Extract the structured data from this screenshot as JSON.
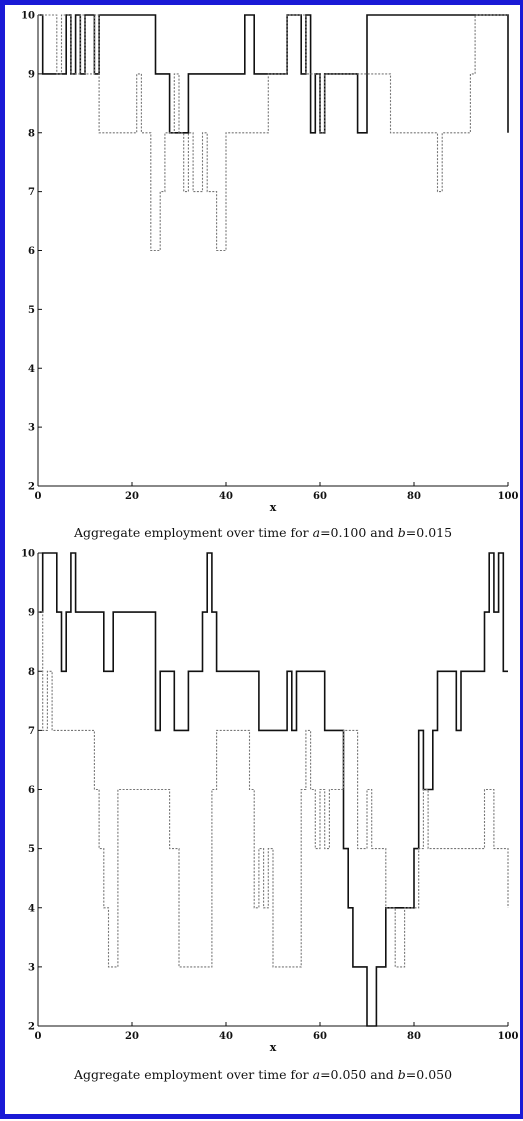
{
  "chart_data": [
    {
      "type": "line",
      "caption": "Aggregate employment over time for a=0.100 and b=0.015",
      "caption_parts": {
        "prefix": "Aggregate employment over time for ",
        "var1": "a",
        "eq1": "=0.100 and ",
        "var2": "b",
        "eq2": "=0.015"
      },
      "xlabel": "x",
      "ylabel": "",
      "xlim": [
        0,
        100
      ],
      "ylim": [
        2,
        10
      ],
      "xticks": [
        0,
        20,
        40,
        60,
        80,
        100
      ],
      "yticks": [
        2,
        3,
        4,
        5,
        6,
        7,
        8,
        9,
        10
      ],
      "grid": false,
      "series": [
        {
          "style": "solid",
          "color": "#111111",
          "x": [
            0,
            1,
            2,
            4,
            5,
            6,
            7,
            8,
            9,
            10,
            11,
            12,
            13,
            25,
            26,
            28,
            29,
            31,
            32,
            43,
            44,
            46,
            48,
            49,
            52,
            53,
            54,
            56,
            57,
            58,
            59,
            60,
            61,
            62,
            63,
            64,
            67,
            68,
            69,
            70,
            80,
            90,
            99,
            100
          ],
          "y": [
            10,
            9,
            9,
            9,
            9,
            10,
            9,
            10,
            9,
            10,
            10,
            9,
            10,
            9,
            9,
            8,
            8,
            8,
            9,
            9,
            10,
            9,
            9,
            9,
            9,
            10,
            10,
            9,
            10,
            8,
            9,
            8,
            9,
            9,
            9,
            9,
            9,
            8,
            8,
            10,
            10,
            10,
            10,
            8
          ]
        },
        {
          "style": "dotted",
          "color": "#777777",
          "x": [
            0,
            1,
            2,
            4,
            5,
            6,
            7,
            8,
            9,
            10,
            11,
            12,
            13,
            20,
            21,
            22,
            23,
            24,
            25,
            26,
            27,
            29,
            30,
            31,
            32,
            33,
            34,
            35,
            36,
            37,
            38,
            39,
            40,
            41,
            43,
            46,
            48,
            49,
            52,
            53,
            56,
            57,
            58,
            59,
            60,
            61,
            62,
            70,
            75,
            77,
            84,
            85,
            86,
            88,
            92,
            93,
            100
          ],
          "y": [
            10,
            10,
            10,
            9,
            10,
            10,
            9,
            9,
            10,
            9,
            9,
            10,
            8,
            8,
            9,
            8,
            8,
            6,
            6,
            7,
            8,
            9,
            8,
            7,
            8,
            7,
            7,
            8,
            7,
            7,
            6,
            6,
            8,
            8,
            8,
            8,
            8,
            9,
            9,
            10,
            10,
            9,
            9,
            9,
            8,
            9,
            9,
            9,
            8,
            8,
            8,
            7,
            8,
            8,
            9,
            10,
            10
          ]
        }
      ]
    },
    {
      "type": "line",
      "caption": "Aggregate employment over time for a=0.050 and b=0.050",
      "caption_parts": {
        "prefix": "Aggregate employment over time for ",
        "var1": "a",
        "eq1": "=0.050 and ",
        "var2": "b",
        "eq2": "=0.050"
      },
      "xlabel": "x",
      "ylabel": "",
      "xlim": [
        0,
        100
      ],
      "ylim": [
        2,
        10
      ],
      "xticks": [
        0,
        20,
        40,
        60,
        80,
        100
      ],
      "yticks": [
        2,
        3,
        4,
        5,
        6,
        7,
        8,
        9,
        10
      ],
      "grid": false,
      "series": [
        {
          "style": "solid",
          "color": "#111111",
          "x": [
            0,
            1,
            4,
            5,
            6,
            7,
            8,
            10,
            14,
            16,
            17,
            25,
            26,
            29,
            32,
            33,
            35,
            36,
            37,
            38,
            39,
            47,
            52,
            53,
            54,
            55,
            58,
            61,
            62,
            65,
            66,
            67,
            70,
            72,
            74,
            75,
            78,
            80,
            81,
            82,
            84,
            85,
            86,
            89,
            90,
            95,
            96,
            97,
            98,
            99,
            100
          ],
          "y": [
            9,
            10,
            9,
            8,
            9,
            10,
            9,
            9,
            8,
            9,
            9,
            7,
            8,
            7,
            8,
            8,
            9,
            10,
            9,
            8,
            8,
            7,
            7,
            8,
            7,
            8,
            8,
            7,
            7,
            5,
            4,
            3,
            2,
            3,
            4,
            4,
            4,
            5,
            7,
            6,
            7,
            8,
            8,
            7,
            8,
            9,
            10,
            9,
            10,
            8,
            8
          ]
        },
        {
          "style": "dotted",
          "color": "#777777",
          "x": [
            0,
            1,
            2,
            3,
            10,
            12,
            13,
            14,
            15,
            17,
            23,
            28,
            30,
            37,
            38,
            41,
            45,
            46,
            47,
            48,
            49,
            50,
            56,
            57,
            58,
            59,
            60,
            61,
            62,
            64,
            65,
            68,
            69,
            70,
            71,
            74,
            76,
            78,
            81,
            82,
            83,
            91,
            95,
            97,
            100
          ],
          "y": [
            9,
            7,
            8,
            7,
            7,
            6,
            5,
            4,
            3,
            6,
            6,
            5,
            3,
            6,
            7,
            7,
            6,
            4,
            5,
            4,
            5,
            3,
            6,
            7,
            6,
            5,
            6,
            5,
            6,
            6,
            7,
            5,
            5,
            6,
            5,
            4,
            3,
            4,
            5,
            6,
            5,
            5,
            6,
            5,
            4
          ]
        }
      ]
    }
  ]
}
